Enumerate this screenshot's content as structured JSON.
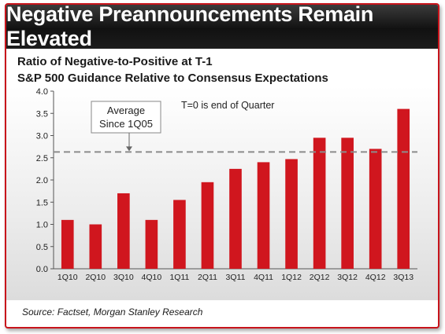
{
  "title": "Negative Preannouncements Remain Elevated",
  "subtitle_line1": "Ratio of Negative-to-Positive at T-1",
  "subtitle_line2": "S&P 500 Guidance Relative to Consensus Expectations",
  "source": "Source: Factset, Morgan Stanley Research",
  "colors": {
    "accent": "#c8141b",
    "bar": "#d0161e",
    "average_line": "#8c8c8c",
    "title_bg": "#1a1a1a"
  },
  "chart_data": {
    "type": "bar",
    "categories": [
      "1Q10",
      "2Q10",
      "3Q10",
      "4Q10",
      "1Q11",
      "2Q11",
      "3Q11",
      "4Q11",
      "1Q12",
      "2Q12",
      "3Q12",
      "4Q12",
      "3Q13"
    ],
    "values": [
      1.1,
      1.0,
      1.7,
      1.1,
      1.55,
      1.95,
      2.25,
      2.4,
      2.47,
      2.95,
      2.95,
      2.7,
      3.6
    ],
    "ylim": [
      0,
      4.0
    ],
    "yticks": [
      "0.0",
      "0.5",
      "1.0",
      "1.5",
      "2.0",
      "2.5",
      "3.0",
      "3.5",
      "4.0"
    ],
    "average_value": 2.63,
    "average_label_line1": "Average",
    "average_label_line2": "Since 1Q05",
    "annotation": "T=0 is end of Quarter",
    "grid": false
  }
}
